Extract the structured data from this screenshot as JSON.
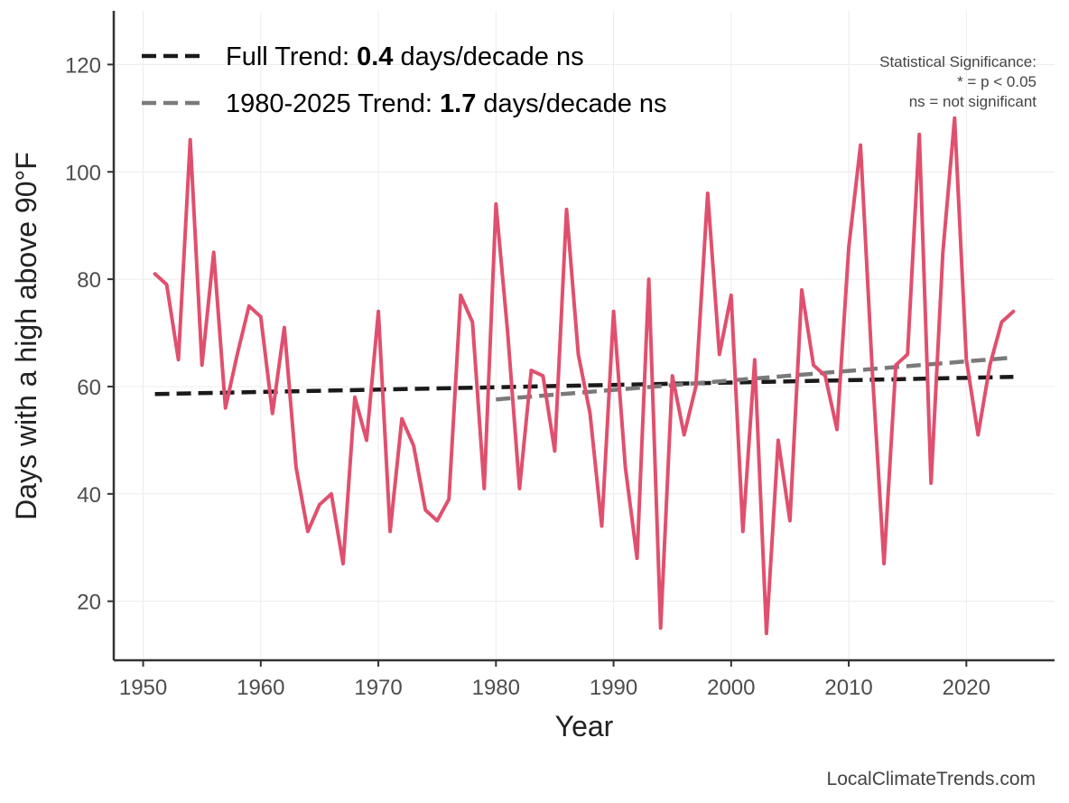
{
  "chart_data": {
    "type": "line",
    "title": "",
    "xlabel": "Year",
    "ylabel": "Days with a high above 90°F",
    "xlim": [
      1947.5,
      2027.5
    ],
    "ylim": [
      9,
      130
    ],
    "xticks": [
      1950,
      1960,
      1970,
      1980,
      1990,
      2000,
      2010,
      2020
    ],
    "yticks": [
      20,
      40,
      60,
      80,
      100,
      120
    ],
    "grid": true,
    "x": [
      1951,
      1952,
      1953,
      1954,
      1955,
      1956,
      1957,
      1958,
      1959,
      1960,
      1961,
      1962,
      1963,
      1964,
      1965,
      1966,
      1967,
      1968,
      1969,
      1970,
      1971,
      1972,
      1973,
      1974,
      1975,
      1976,
      1977,
      1978,
      1979,
      1980,
      1981,
      1982,
      1983,
      1984,
      1985,
      1986,
      1987,
      1988,
      1989,
      1990,
      1991,
      1992,
      1993,
      1994,
      1995,
      1996,
      1997,
      1998,
      1999,
      2000,
      2001,
      2002,
      2003,
      2004,
      2005,
      2006,
      2007,
      2008,
      2009,
      2010,
      2011,
      2012,
      2013,
      2014,
      2015,
      2016,
      2017,
      2018,
      2019,
      2020,
      2021,
      2022,
      2023,
      2024
    ],
    "series": [
      {
        "name": "Days above 90°F",
        "color": "#e0506e",
        "values": [
          81,
          79,
          65,
          106,
          64,
          85,
          56,
          66,
          75,
          73,
          55,
          71,
          45,
          33,
          38,
          40,
          27,
          58,
          50,
          74,
          33,
          54,
          49,
          37,
          35,
          39,
          77,
          72,
          41,
          94,
          70,
          41,
          63,
          62,
          48,
          93,
          66,
          55,
          34,
          74,
          45,
          28,
          80,
          15,
          62,
          51,
          60,
          96,
          66,
          77,
          33,
          65,
          14,
          50,
          35,
          78,
          64,
          62,
          52,
          86,
          105,
          63,
          27,
          64,
          66,
          107,
          42,
          85,
          110,
          65,
          51,
          64,
          72,
          74
        ]
      }
    ],
    "trends": [
      {
        "name": "Full Trend",
        "color": "#1a1a1a",
        "x": [
          1951,
          2024
        ],
        "y": [
          58.6,
          61.8
        ]
      },
      {
        "name": "1980-2025 Trend",
        "color": "#7a7a7a",
        "x": [
          1980,
          2024
        ],
        "y": [
          57.6,
          65.4
        ]
      }
    ],
    "legend": {
      "position": "top-left",
      "entries": [
        {
          "prefix": "Full Trend: ",
          "value": "0.4",
          "suffix": " days/decade ns",
          "color": "#1a1a1a"
        },
        {
          "prefix": "1980-2025 Trend: ",
          "value": "1.7",
          "suffix": " days/decade ns",
          "color": "#7a7a7a"
        }
      ]
    },
    "annotations": {
      "significance_lines": [
        "Statistical Significance:",
        "* = p < 0.05",
        "ns = not significant"
      ],
      "credit": "LocalClimateTrends.com"
    }
  }
}
